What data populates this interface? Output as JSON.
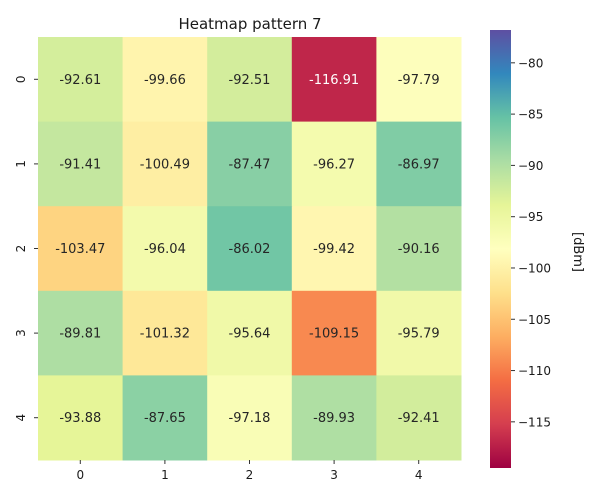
{
  "chart_data": {
    "type": "heatmap",
    "title": "Heatmap pattern 7",
    "x_ticks": [
      "0",
      "1",
      "2",
      "3",
      "4"
    ],
    "y_ticks": [
      "0",
      "1",
      "2",
      "3",
      "4"
    ],
    "values": [
      [
        -92.61,
        -99.66,
        -92.51,
        -116.91,
        -97.79
      ],
      [
        -91.41,
        -100.49,
        -87.47,
        -96.27,
        -86.97
      ],
      [
        -103.47,
        -96.04,
        -86.02,
        -99.42,
        -90.16
      ],
      [
        -89.81,
        -101.32,
        -95.64,
        -109.15,
        -95.79
      ],
      [
        -93.88,
        -87.65,
        -97.18,
        -89.93,
        -92.41
      ]
    ],
    "value_labels": [
      [
        "-92.61",
        "-99.66",
        "-92.51",
        "-116.91",
        "-97.79"
      ],
      [
        "-91.41",
        "-100.49",
        "-87.47",
        "-96.27",
        "-86.97"
      ],
      [
        "-103.47",
        "-96.04",
        "-86.02",
        "-99.42",
        "-90.16"
      ],
      [
        "-89.81",
        "-101.32",
        "-95.64",
        "-109.15",
        "-95.79"
      ],
      [
        "-93.88",
        "-87.65",
        "-97.18",
        "-89.93",
        "-92.41"
      ]
    ],
    "colorbar": {
      "label": "[dBm]",
      "range": [
        -119.5,
        -76.8
      ],
      "ticks": [
        -80,
        -85,
        -90,
        -95,
        -100,
        -105,
        -110,
        -115
      ],
      "tick_labels": [
        "−80",
        "−85",
        "−90",
        "−95",
        "−100",
        "−105",
        "−110",
        "−115"
      ],
      "colormap": "Spectral",
      "colormap_stops": [
        "#9e0142",
        "#d53e4f",
        "#f46d43",
        "#fdae61",
        "#fee08b",
        "#ffffbf",
        "#e6f598",
        "#abdda4",
        "#66c2a5",
        "#3288bd",
        "#5e4fa2"
      ]
    },
    "grid": false,
    "legend": "colorbar-right"
  }
}
